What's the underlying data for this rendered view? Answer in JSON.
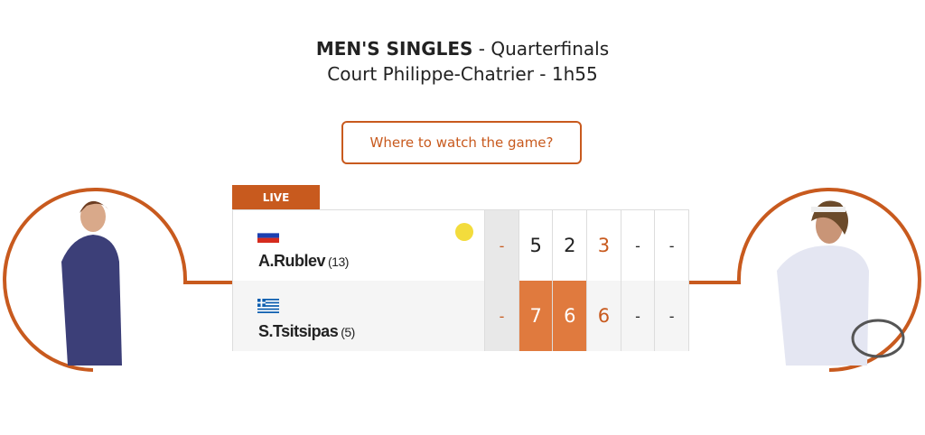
{
  "header": {
    "event": "MEN'S SINGLES",
    "round": " - Quarterfinals",
    "court_line": "Court Philippe-Chatrier - 1h55"
  },
  "watch_button": "Where to watch the game?",
  "status": "LIVE",
  "accent_color": "#c85a1e",
  "players": [
    {
      "name": "A.Rublev",
      "seed": "(13)",
      "country": "Russia",
      "serving": true,
      "points": "-",
      "sets": [
        "5",
        "2",
        "3",
        "-",
        "-"
      ],
      "sets_won": [
        false,
        false,
        false,
        false,
        false
      ]
    },
    {
      "name": "S.Tsitsipas",
      "seed": "(5)",
      "country": "Greece",
      "serving": false,
      "points": "-",
      "sets": [
        "7",
        "6",
        "6",
        "-",
        "-"
      ],
      "sets_won": [
        true,
        true,
        false,
        false,
        false
      ]
    }
  ]
}
